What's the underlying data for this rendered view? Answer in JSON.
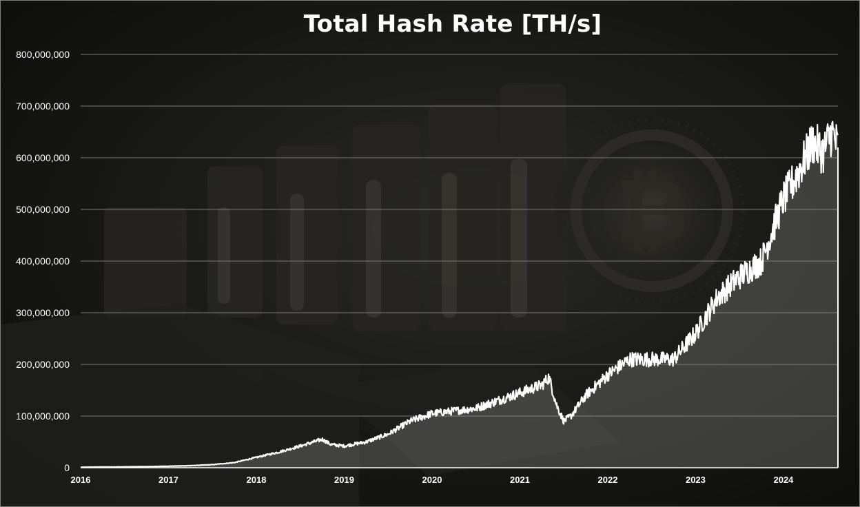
{
  "chart_data": {
    "type": "area",
    "title": "Total Hash Rate [TH/s]",
    "xlabel": "",
    "ylabel": "",
    "xlim": [
      2016.0,
      2024.62
    ],
    "ylim": [
      0,
      800000000
    ],
    "grid": true,
    "legend": "none",
    "y_ticks": [
      {
        "value": 0,
        "label": "0"
      },
      {
        "value": 100000000,
        "label": "100,000,000"
      },
      {
        "value": 200000000,
        "label": "200,000,000"
      },
      {
        "value": 300000000,
        "label": "300,000,000"
      },
      {
        "value": 400000000,
        "label": "400,000,000"
      },
      {
        "value": 500000000,
        "label": "500,000,000"
      },
      {
        "value": 600000000,
        "label": "600,000,000"
      },
      {
        "value": 700000000,
        "label": "700,000,000"
      },
      {
        "value": 800000000,
        "label": "800,000,000"
      }
    ],
    "x_ticks": [
      {
        "value": 2016,
        "label": "2016"
      },
      {
        "value": 2017,
        "label": "2017"
      },
      {
        "value": 2018,
        "label": "2018"
      },
      {
        "value": 2019,
        "label": "2019"
      },
      {
        "value": 2020,
        "label": "2020"
      },
      {
        "value": 2021,
        "label": "2021"
      },
      {
        "value": 2022,
        "label": "2022"
      },
      {
        "value": 2023,
        "label": "2023"
      },
      {
        "value": 2024,
        "label": "2024"
      }
    ],
    "colors": {
      "line": "#ffffff",
      "fill": "#8a8a8a",
      "grid": "#7a7a7a"
    },
    "series": [
      {
        "x": [
          2016.0,
          2016.25,
          2016.5,
          2016.75,
          2017.0,
          2017.25,
          2017.5,
          2017.75,
          2018.0,
          2018.25,
          2018.5,
          2018.75,
          2018.85,
          2019.0,
          2019.25,
          2019.5,
          2019.75,
          2020.0,
          2020.25,
          2020.5,
          2020.75,
          2021.0,
          2021.25,
          2021.33,
          2021.42,
          2021.5,
          2021.58,
          2021.75,
          2022.0,
          2022.25,
          2022.5,
          2022.75,
          2023.0,
          2023.25,
          2023.5,
          2023.75,
          2024.0,
          2024.1,
          2024.25,
          2024.33,
          2024.45,
          2024.55,
          2024.62
        ],
        "y": [
          1000000,
          1500000,
          1800000,
          2200000,
          3000000,
          4000000,
          6000000,
          10000000,
          20000000,
          30000000,
          42000000,
          55000000,
          45000000,
          42000000,
          50000000,
          65000000,
          90000000,
          105000000,
          110000000,
          115000000,
          130000000,
          145000000,
          160000000,
          175000000,
          120000000,
          90000000,
          100000000,
          140000000,
          180000000,
          210000000,
          210000000,
          210000000,
          260000000,
          330000000,
          370000000,
          400000000,
          520000000,
          550000000,
          600000000,
          630000000,
          610000000,
          650000000,
          620000000
        ]
      }
    ]
  }
}
